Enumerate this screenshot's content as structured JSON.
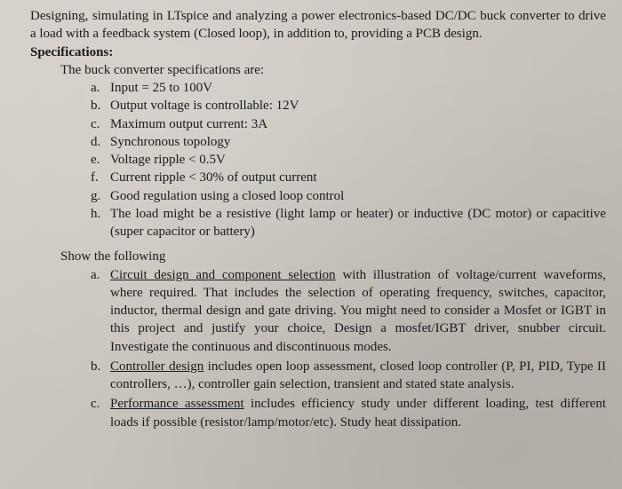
{
  "intro": "Designing, simulating in LTspice and analyzing a power electronics-based DC/DC buck converter to drive a load with a feedback system (Closed loop), in addition to, providing a PCB design.",
  "spec_heading": "Specifications:",
  "spec_subheading": "The buck converter specifications are:",
  "specs": [
    {
      "m": "a.",
      "t": "Input = 25 to 100V"
    },
    {
      "m": "b.",
      "t": "Output voltage is controllable: 12V"
    },
    {
      "m": "c.",
      "t": "Maximum output current: 3A"
    },
    {
      "m": "d.",
      "t": "Synchronous topology"
    },
    {
      "m": "e.",
      "t": "Voltage ripple < 0.5V"
    },
    {
      "m": "f.",
      "t": "Current ripple < 30% of output current"
    },
    {
      "m": "g.",
      "t": "Good regulation using a closed loop control"
    },
    {
      "m": "h.",
      "t": "The load might be a resistive (light lamp or heater) or inductive (DC motor) or capacitive (super capacitor or battery)"
    }
  ],
  "show_heading": "Show the following",
  "tasks": [
    {
      "m": "a.",
      "u": "Circuit design and component selection",
      "rest": " with illustration of voltage/current waveforms, where required. That includes the selection of operating frequency, switches, capacitor, inductor, thermal design and gate driving. You might need to consider a Mosfet or IGBT in this project and justify your choice, Design a mosfet/IGBT driver, snubber circuit. Investigate the continuous and discontinuous modes."
    },
    {
      "m": "b.",
      "u": "Controller design",
      "rest": " includes open loop assessment, closed loop controller (P, PI, PID, Type II controllers, …), controller gain selection, transient and stated state analysis."
    },
    {
      "m": "c.",
      "u": "Performance assessment",
      "rest": " includes efficiency study under different loading, test different loads if possible (resistor/lamp/motor/etc). Study heat dissipation."
    }
  ]
}
